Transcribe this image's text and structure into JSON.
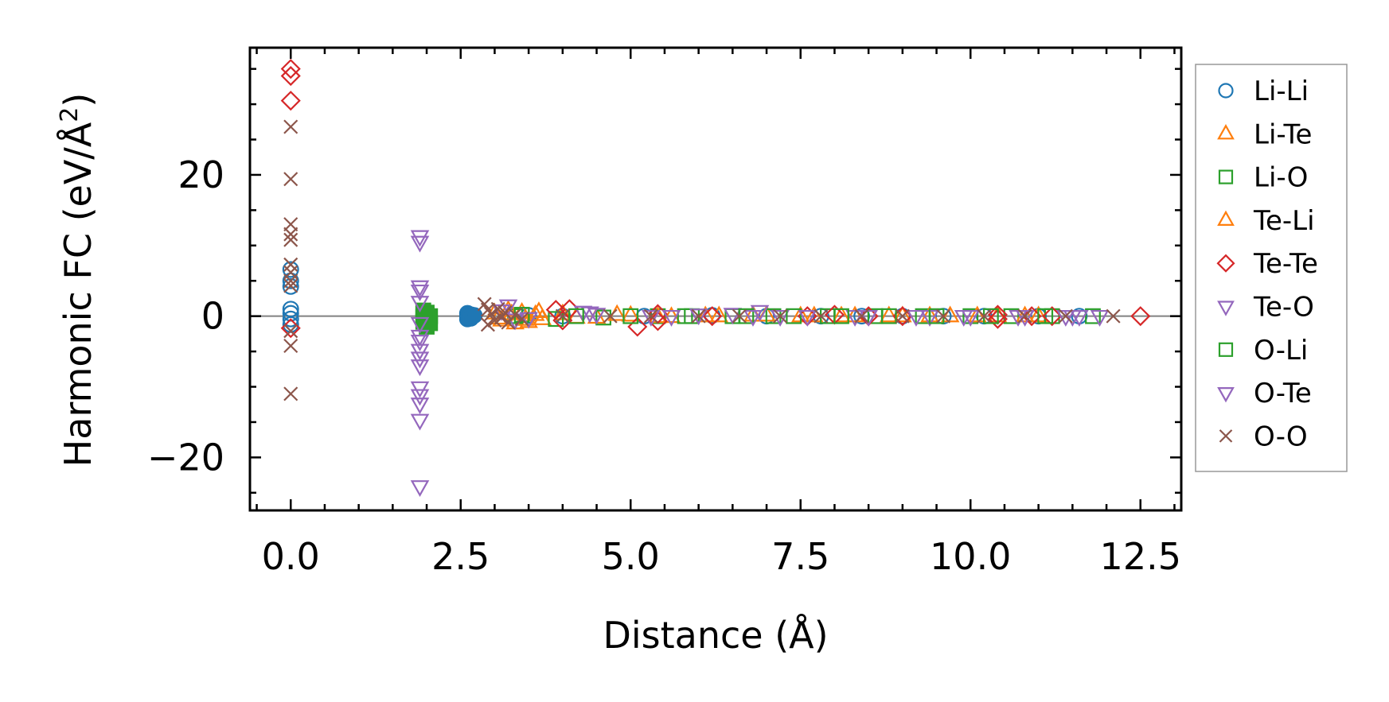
{
  "chart_data": {
    "type": "scatter",
    "xlabel": "Distance (Å)",
    "ylabel": "Harmonic FC (eV/Å",
    "ylabel_sup": "2",
    "ylabel_close": ")",
    "xlim": [
      -0.6,
      13.1
    ],
    "ylim": [
      -27.5,
      38
    ],
    "xticks": [
      0.0,
      2.5,
      5.0,
      7.5,
      10.0,
      12.5
    ],
    "xtick_labels": [
      "0.0",
      "2.5",
      "5.0",
      "7.5",
      "10.0",
      "12.5"
    ],
    "yticks": [
      -20,
      0,
      20
    ],
    "ytick_labels": [
      "−20",
      "0",
      "20"
    ],
    "xminor_step": 0.5,
    "yminor_step": 5,
    "zero_line": 0,
    "legend_position": "outside-right",
    "series": [
      {
        "name": "Li-Li",
        "marker": "circle",
        "color": "#1f77b4",
        "filled_cluster": true,
        "points": [
          [
            0.0,
            6.6
          ],
          [
            0.0,
            5.0
          ],
          [
            0.0,
            4.2
          ],
          [
            0.0,
            1.0
          ],
          [
            0.0,
            0.4
          ],
          [
            0.0,
            -0.4
          ],
          [
            0.0,
            -1.2
          ],
          [
            2.6,
            0.4
          ],
          [
            2.6,
            0.0
          ],
          [
            2.6,
            -0.4
          ],
          [
            2.65,
            0.2
          ],
          [
            2.65,
            -0.3
          ],
          [
            2.7,
            0.1
          ],
          [
            3.5,
            0.1
          ],
          [
            4.0,
            0.0
          ],
          [
            5.2,
            0.0
          ],
          [
            6.2,
            0.1
          ],
          [
            7.0,
            0.0
          ],
          [
            7.8,
            0.0
          ],
          [
            8.4,
            0.0
          ],
          [
            9.0,
            0.0
          ],
          [
            9.6,
            0.0
          ],
          [
            10.2,
            0.0
          ],
          [
            11.0,
            0.0
          ],
          [
            11.6,
            0.0
          ]
        ]
      },
      {
        "name": "Li-Te",
        "marker": "triangle-up",
        "color": "#ff7f0e",
        "points": [
          [
            3.0,
            0.4
          ],
          [
            3.1,
            -0.6
          ],
          [
            3.2,
            0.8
          ],
          [
            3.3,
            -1.0
          ],
          [
            3.4,
            0.5
          ],
          [
            3.5,
            -0.8
          ],
          [
            3.6,
            0.2
          ],
          [
            3.7,
            -0.4
          ],
          [
            4.0,
            0.3
          ],
          [
            4.5,
            -0.2
          ],
          [
            5.0,
            0.1
          ],
          [
            5.6,
            -0.1
          ],
          [
            6.3,
            0.0
          ],
          [
            7.0,
            0.1
          ],
          [
            7.7,
            0.0
          ],
          [
            8.3,
            0.0
          ],
          [
            9.0,
            0.0
          ],
          [
            9.7,
            0.0
          ],
          [
            10.4,
            0.0
          ],
          [
            11.0,
            0.0
          ]
        ]
      },
      {
        "name": "Li-O",
        "marker": "square",
        "color": "#2ca02c",
        "filled_cluster": true,
        "points": [
          [
            1.95,
            0.8
          ],
          [
            1.95,
            0.3
          ],
          [
            1.95,
            -0.2
          ],
          [
            1.95,
            -0.8
          ],
          [
            2.0,
            0.5
          ],
          [
            2.0,
            -0.5
          ],
          [
            2.0,
            -1.5
          ],
          [
            2.05,
            0.0
          ],
          [
            2.05,
            -1.0
          ],
          [
            3.3,
            0.0
          ],
          [
            3.9,
            -0.4
          ],
          [
            4.6,
            -0.2
          ],
          [
            5.4,
            0.0
          ],
          [
            5.8,
            0.0
          ],
          [
            6.5,
            0.0
          ],
          [
            7.1,
            0.0
          ],
          [
            7.9,
            0.0
          ],
          [
            8.6,
            0.0
          ],
          [
            9.3,
            0.0
          ],
          [
            10.0,
            0.0
          ],
          [
            10.6,
            0.0
          ],
          [
            11.2,
            0.0
          ],
          [
            11.8,
            0.0
          ]
        ]
      },
      {
        "name": "Te-Li",
        "marker": "triangle-up",
        "color": "#ff7f0e",
        "points": [
          [
            3.05,
            -0.3
          ],
          [
            3.25,
            0.3
          ],
          [
            3.45,
            -0.5
          ],
          [
            3.65,
            0.6
          ],
          [
            4.2,
            -0.2
          ],
          [
            4.8,
            0.2
          ],
          [
            5.4,
            -0.1
          ],
          [
            6.1,
            0.0
          ],
          [
            6.8,
            0.1
          ],
          [
            7.5,
            0.0
          ],
          [
            8.1,
            0.0
          ],
          [
            8.8,
            0.0
          ],
          [
            9.4,
            0.0
          ],
          [
            10.1,
            0.0
          ],
          [
            10.8,
            0.0
          ]
        ]
      },
      {
        "name": "Te-Te",
        "marker": "diamond",
        "color": "#d62728",
        "points": [
          [
            0.0,
            35.0
          ],
          [
            0.0,
            34.0
          ],
          [
            0.0,
            30.5
          ],
          [
            0.0,
            -1.7
          ],
          [
            3.9,
            0.9
          ],
          [
            4.0,
            -0.6
          ],
          [
            4.1,
            1.0
          ],
          [
            5.1,
            -1.5
          ],
          [
            5.4,
            -0.7
          ],
          [
            5.4,
            0.3
          ],
          [
            6.2,
            0.0
          ],
          [
            7.6,
            0.0
          ],
          [
            8.0,
            0.2
          ],
          [
            8.5,
            0.0
          ],
          [
            9.0,
            0.0
          ],
          [
            10.4,
            -0.4
          ],
          [
            10.4,
            0.2
          ],
          [
            10.9,
            0.0
          ],
          [
            11.2,
            0.0
          ],
          [
            12.5,
            0.0
          ]
        ]
      },
      {
        "name": "Te-O",
        "marker": "triangle-down",
        "color": "#9467bd",
        "points": [
          [
            1.9,
            11.3
          ],
          [
            1.9,
            10.5
          ],
          [
            1.9,
            4.2
          ],
          [
            1.9,
            3.6
          ],
          [
            1.9,
            -2.8
          ],
          [
            1.9,
            -3.5
          ],
          [
            1.9,
            -4.8
          ],
          [
            1.9,
            -5.9
          ],
          [
            1.9,
            -7.0
          ],
          [
            1.9,
            -10.1
          ],
          [
            1.9,
            -11.2
          ],
          [
            1.9,
            -12.4
          ],
          [
            1.9,
            -14.7
          ],
          [
            1.9,
            -24.1
          ],
          [
            3.2,
            1.5
          ],
          [
            3.3,
            -0.5
          ],
          [
            4.3,
            0.6
          ],
          [
            4.4,
            0.5
          ],
          [
            5.6,
            0.0
          ],
          [
            6.5,
            0.3
          ],
          [
            6.9,
            0.7
          ],
          [
            7.2,
            0.0
          ],
          [
            8.3,
            0.0
          ],
          [
            9.4,
            0.0
          ],
          [
            9.9,
            0.0
          ],
          [
            10.8,
            0.0
          ],
          [
            11.4,
            0.0
          ],
          [
            11.6,
            0.0
          ],
          [
            11.9,
            0.0
          ]
        ]
      },
      {
        "name": "O-Li",
        "marker": "square",
        "color": "#2ca02c",
        "points": [
          [
            2.0,
            0.2
          ],
          [
            2.0,
            -0.4
          ],
          [
            3.4,
            0.2
          ],
          [
            4.2,
            0.0
          ],
          [
            5.0,
            0.0
          ],
          [
            5.9,
            0.0
          ],
          [
            6.7,
            0.0
          ],
          [
            7.4,
            0.0
          ],
          [
            8.1,
            0.0
          ],
          [
            8.8,
            0.0
          ],
          [
            9.5,
            0.0
          ],
          [
            10.3,
            0.0
          ],
          [
            11.1,
            0.0
          ]
        ]
      },
      {
        "name": "O-Te",
        "marker": "triangle-down",
        "color": "#9467bd",
        "points": [
          [
            1.9,
            2.0
          ],
          [
            1.9,
            -1.0
          ],
          [
            3.1,
            0.8
          ],
          [
            3.5,
            -0.3
          ],
          [
            4.5,
            0.3
          ],
          [
            5.3,
            0.0
          ],
          [
            6.0,
            0.2
          ],
          [
            6.8,
            0.0
          ],
          [
            7.6,
            0.0
          ],
          [
            8.5,
            0.0
          ],
          [
            9.2,
            0.0
          ],
          [
            10.0,
            0.0
          ],
          [
            10.7,
            0.0
          ],
          [
            11.5,
            0.0
          ]
        ]
      },
      {
        "name": "O-O",
        "marker": "cross",
        "color": "#8c564b",
        "points": [
          [
            0.0,
            26.8
          ],
          [
            0.0,
            19.4
          ],
          [
            0.0,
            13.0
          ],
          [
            0.0,
            11.6
          ],
          [
            0.0,
            10.8
          ],
          [
            0.0,
            7.3
          ],
          [
            0.0,
            6.2
          ],
          [
            0.0,
            5.0
          ],
          [
            0.0,
            4.3
          ],
          [
            0.0,
            -2.1
          ],
          [
            0.0,
            -4.2
          ],
          [
            0.0,
            -11.0
          ],
          [
            2.85,
            1.7
          ],
          [
            2.9,
            0.9
          ],
          [
            2.9,
            -1.2
          ],
          [
            2.95,
            0.3
          ],
          [
            3.0,
            -0.6
          ],
          [
            3.05,
            1.0
          ],
          [
            3.1,
            -0.2
          ],
          [
            3.15,
            0.5
          ],
          [
            3.2,
            -0.9
          ],
          [
            3.3,
            0.2
          ],
          [
            3.4,
            -0.4
          ],
          [
            4.0,
            0.0
          ],
          [
            4.7,
            0.0
          ],
          [
            5.3,
            0.0
          ],
          [
            6.0,
            0.0
          ],
          [
            6.6,
            0.0
          ],
          [
            7.2,
            0.0
          ],
          [
            7.8,
            0.0
          ],
          [
            8.4,
            0.0
          ],
          [
            9.0,
            0.0
          ],
          [
            9.6,
            0.0
          ],
          [
            10.2,
            0.0
          ],
          [
            10.8,
            0.0
          ],
          [
            11.4,
            0.0
          ],
          [
            12.1,
            0.0
          ]
        ]
      }
    ]
  }
}
